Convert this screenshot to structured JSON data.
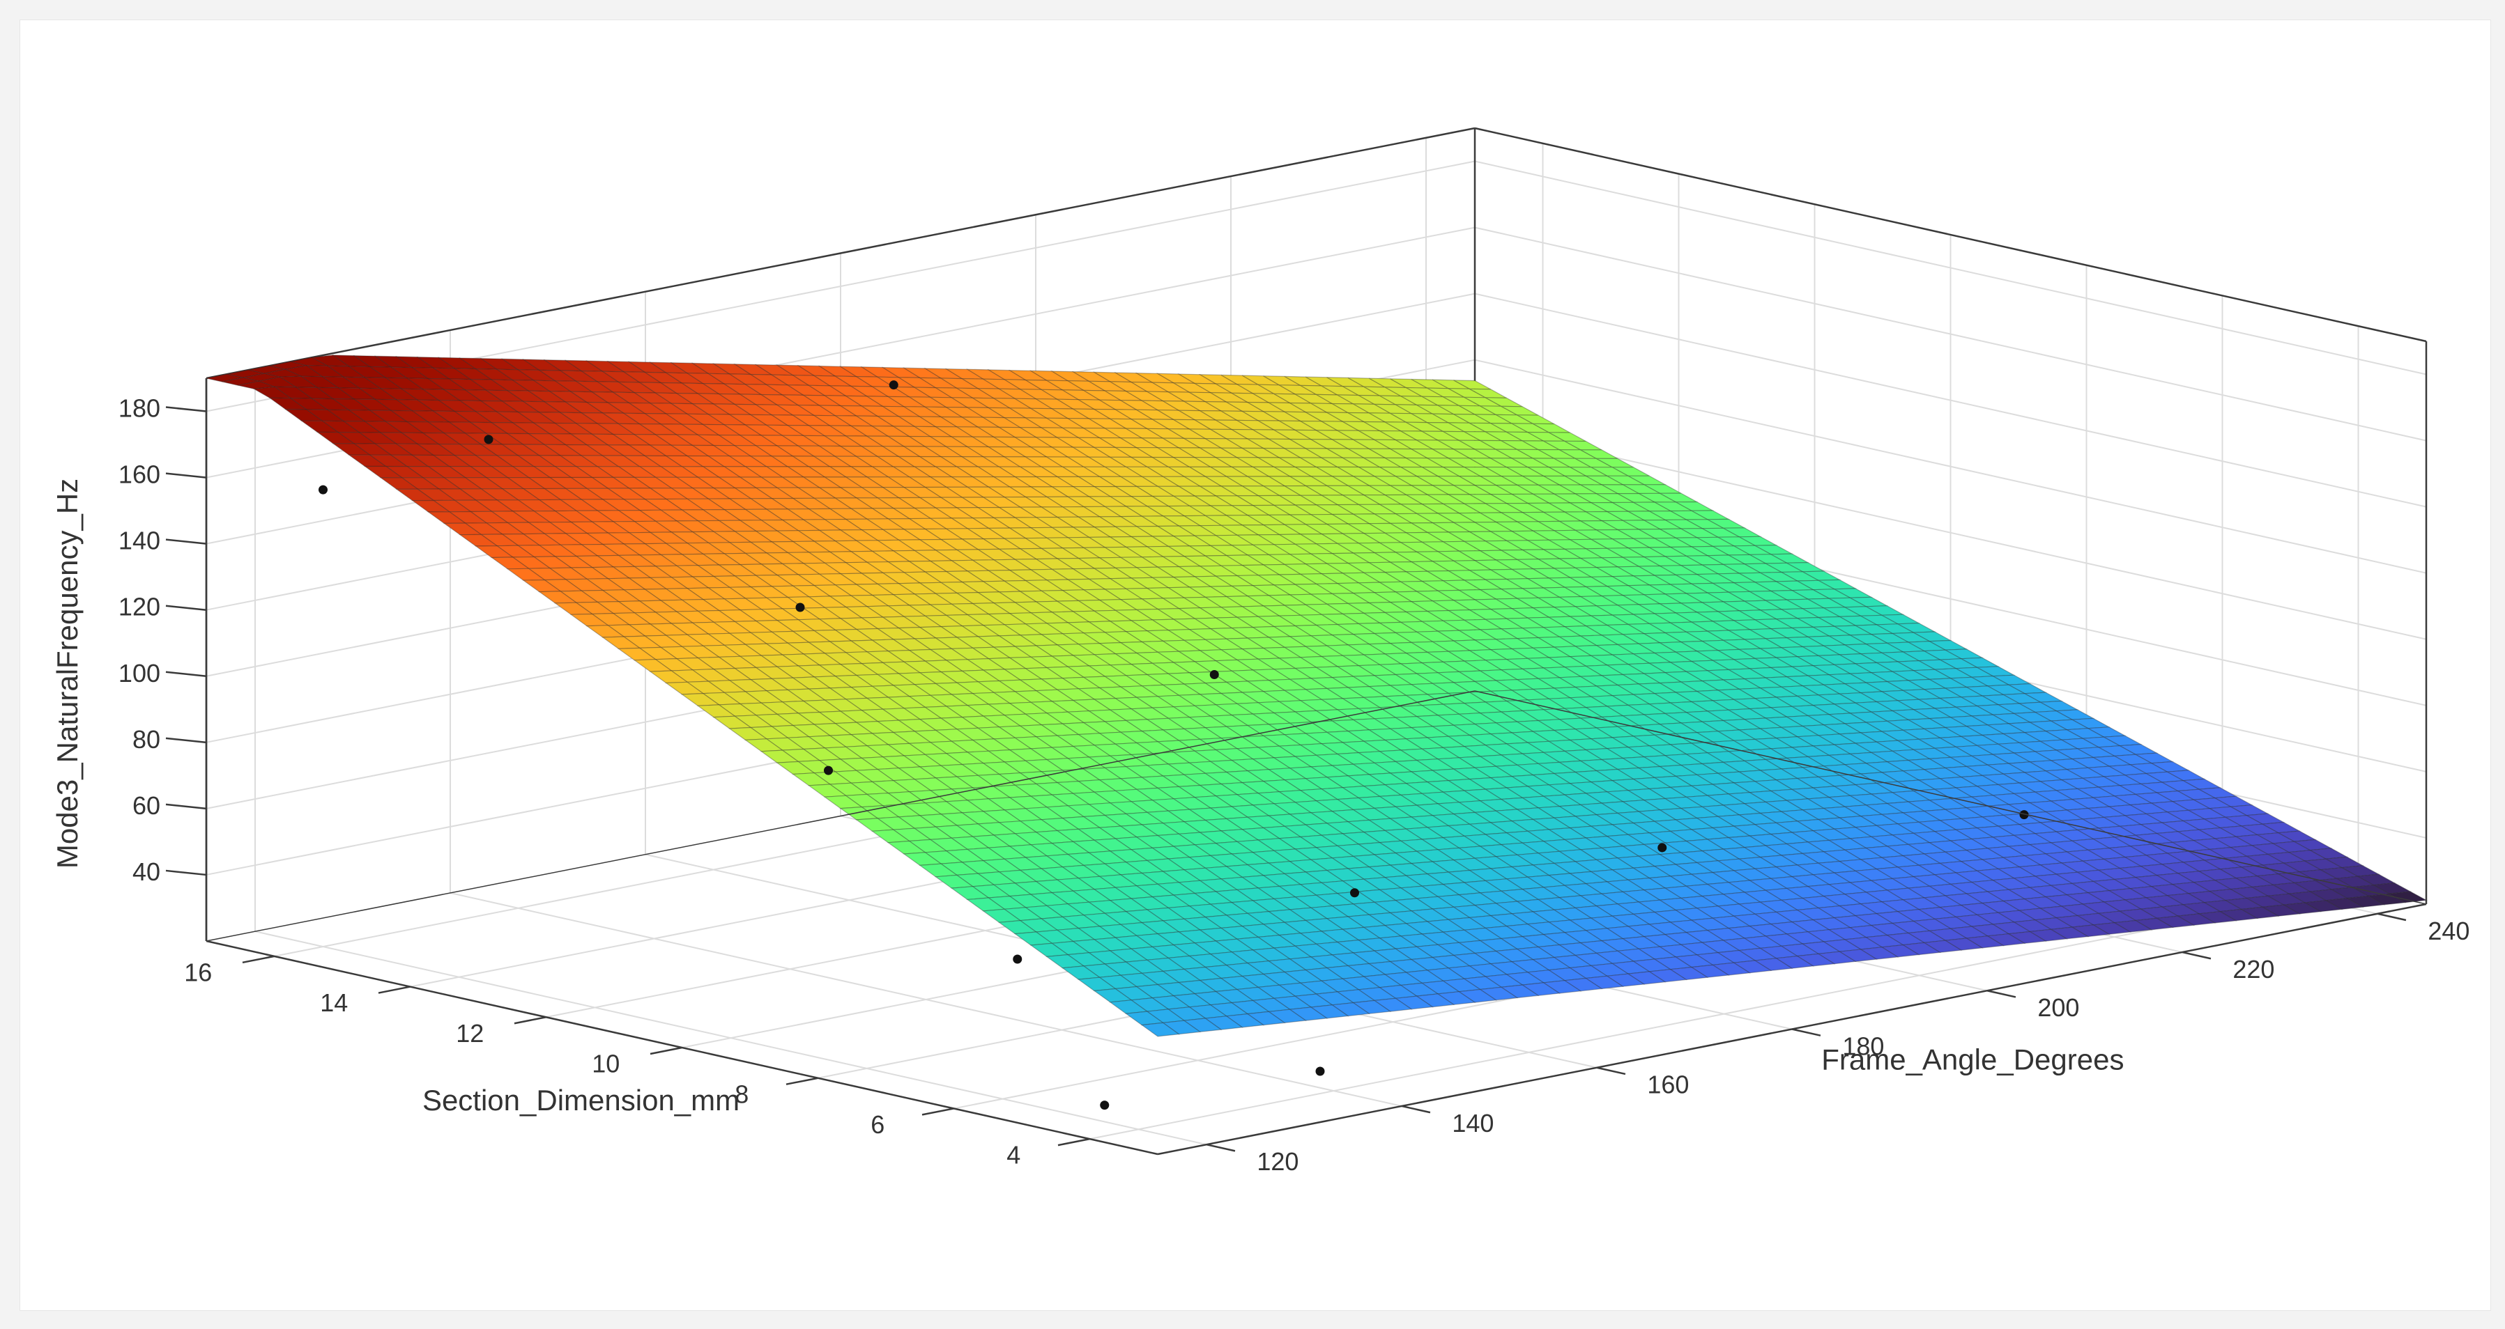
{
  "chart_data": {
    "type": "surface",
    "xlabel": "Frame_Angle_Degrees",
    "ylabel": "Section_Dimension_mm",
    "zlabel": "Mode3_NaturalFrequency_Hz",
    "xlim": [
      115,
      245
    ],
    "ylim": [
      3,
      17
    ],
    "zlim": [
      20,
      190
    ],
    "xticks": [
      "120",
      "140",
      "160",
      "180",
      "200",
      "220",
      "240"
    ],
    "yticks": [
      "4",
      "6",
      "8",
      "10",
      "12",
      "14",
      "16"
    ],
    "zticks": [
      "40",
      "60",
      "80",
      "100",
      "120",
      "140",
      "160",
      "180"
    ],
    "grid": true,
    "colormap": "turbo",
    "surface": {
      "model": "z = a + b*x + c*y + d*x*y",
      "coefficients": {
        "a": 46.1,
        "b": -0.1827,
        "c": 13.3,
        "d": -0.0273
      },
      "x_range": [
        115,
        245
      ],
      "y_range": [
        3,
        17
      ],
      "resolution": 60
    },
    "points": [
      {
        "x": 120,
        "y": 4.5,
        "z": 25
      },
      {
        "x": 140,
        "y": 4.2,
        "z": 25
      },
      {
        "x": 125,
        "y": 6.5,
        "z": 57
      },
      {
        "x": 170,
        "y": 8,
        "z": 44
      },
      {
        "x": 205,
        "y": 8.5,
        "z": 35
      },
      {
        "x": 240,
        "y": 8.2,
        "z": 26
      },
      {
        "x": 130,
        "y": 10,
        "z": 95
      },
      {
        "x": 180,
        "y": 11.5,
        "z": 88
      },
      {
        "x": 130,
        "y": 15,
        "z": 172
      },
      {
        "x": 175,
        "y": 15.5,
        "z": 160
      },
      {
        "x": 120,
        "y": 16,
        "z": 158
      },
      {
        "x": 148,
        "y": 13,
        "z": 120
      }
    ]
  }
}
